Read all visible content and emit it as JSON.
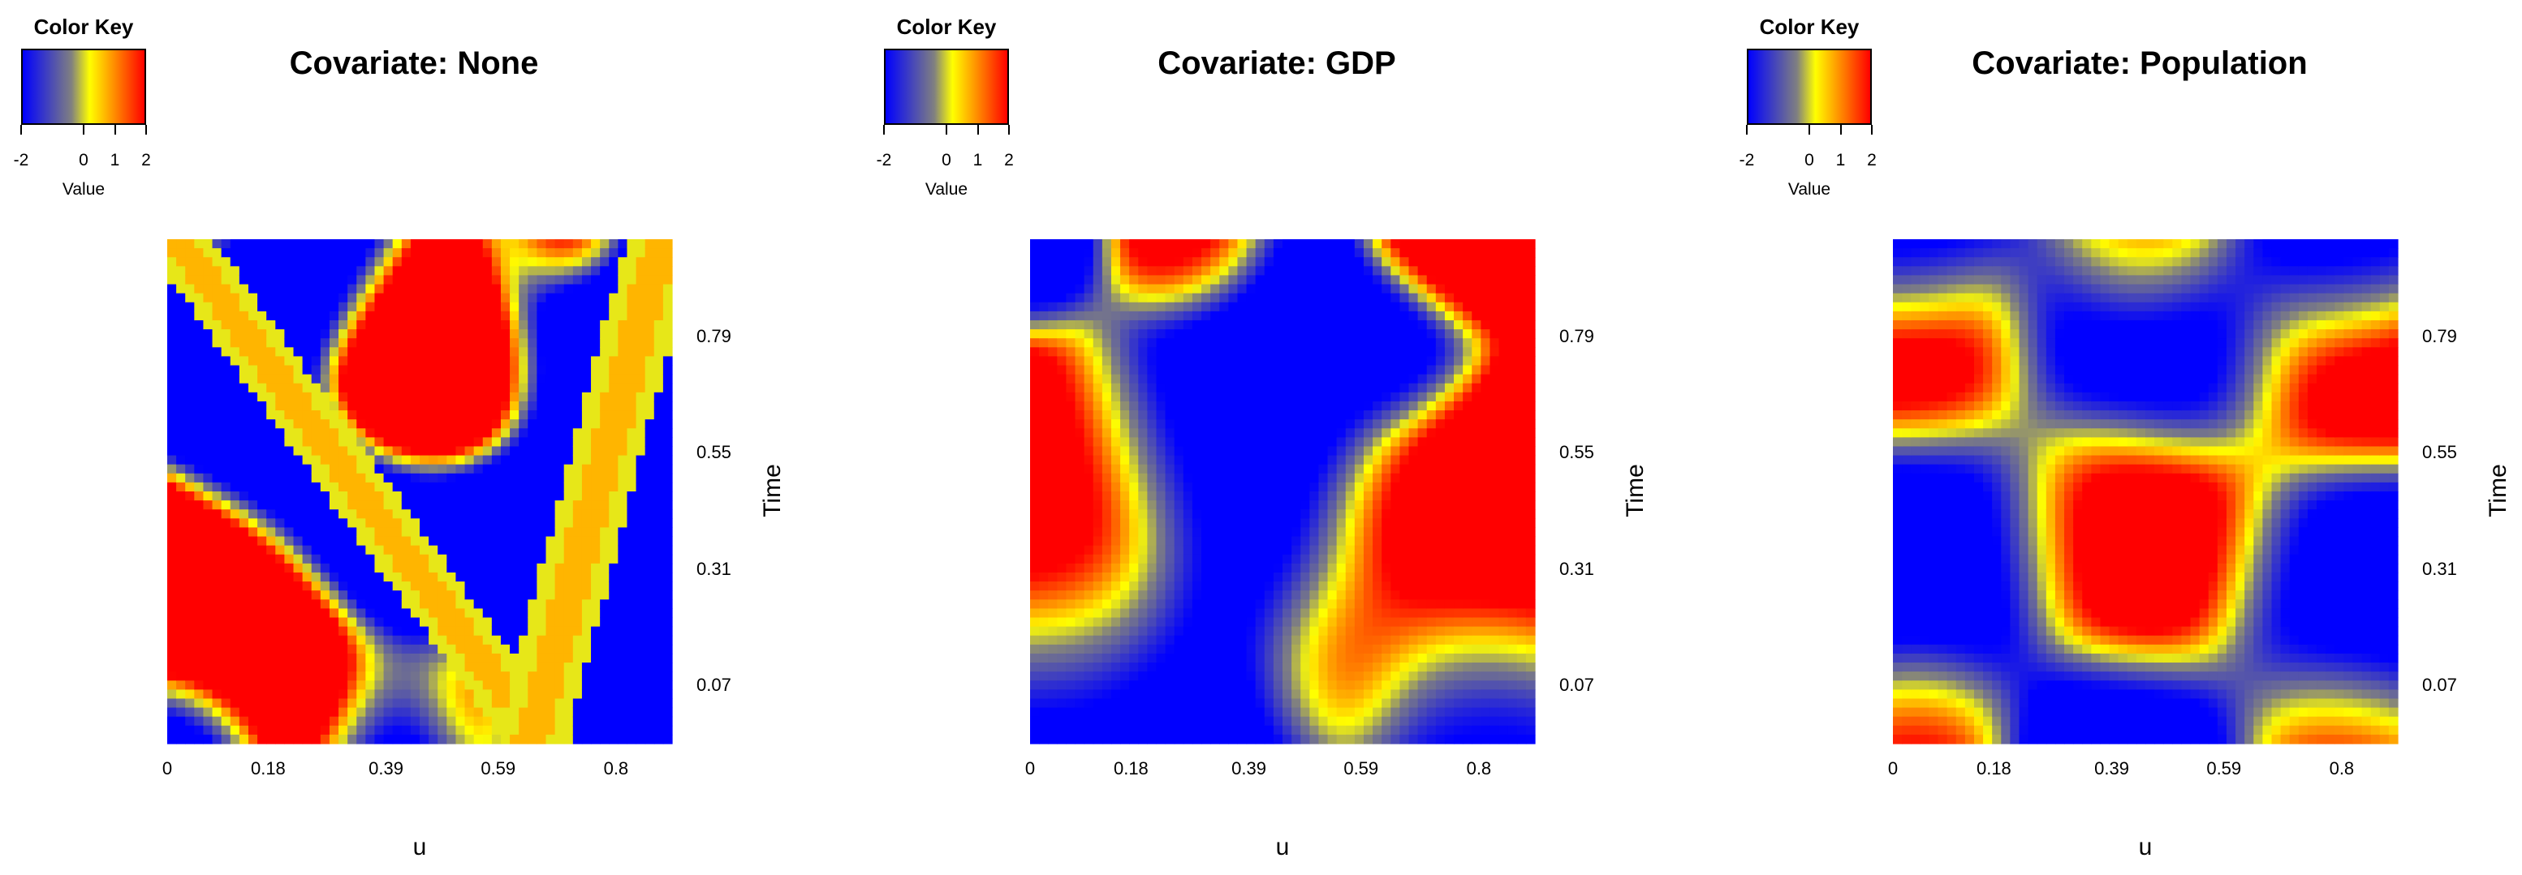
{
  "chart_data": [
    {
      "type": "heatmap",
      "title": "Covariate: None",
      "xlabel": "u",
      "ylabel": "Time",
      "x_ticks": [
        "0",
        "0.18",
        "0.39",
        "0.59",
        "0.8"
      ],
      "y_ticks": [
        "0.79",
        "0.55",
        "0.31",
        "0.07"
      ],
      "xlim": [
        0,
        0.9
      ],
      "ylim": [
        -0.05,
        0.99
      ],
      "color_key": {
        "title": "Color Key",
        "label": "Value",
        "ticks": [
          "-2",
          "0",
          "1",
          "2"
        ],
        "range": [
          -2,
          2
        ],
        "colors": [
          "#0000ff",
          "#808080",
          "#ffff00",
          "#ff0000"
        ]
      },
      "pattern": "sharp",
      "blobs": [
        [
          0.45,
          0.05,
          -2,
          0.12
        ],
        [
          0.0,
          0.88,
          -2,
          0.12
        ],
        [
          0.15,
          0.88,
          -2,
          0.12
        ],
        [
          0.3,
          0.92,
          -2,
          0.12
        ],
        [
          0.2,
          0.55,
          -2,
          0.12
        ],
        [
          0.35,
          0.42,
          -2,
          0.12
        ],
        [
          0.5,
          0.38,
          -2,
          0.12
        ],
        [
          0.65,
          0.38,
          -2,
          0.12
        ],
        [
          0.82,
          0.88,
          -2,
          0.12
        ],
        [
          0.82,
          0.7,
          -2,
          0.12
        ],
        [
          0.82,
          0.45,
          -2,
          0.12
        ],
        [
          0.82,
          0.25,
          -2,
          0.12
        ],
        [
          0.82,
          0.08,
          -2,
          0.12
        ],
        [
          0.05,
          0.05,
          -2,
          0.1
        ],
        [
          0.08,
          0.98,
          2,
          0.07
        ],
        [
          0.8,
          0.98,
          2,
          0.07
        ],
        [
          0.45,
          0.82,
          2,
          0.12
        ],
        [
          0.62,
          0.76,
          2,
          0.12
        ],
        [
          0.5,
          0.66,
          2,
          0.12
        ],
        [
          0.05,
          0.35,
          2,
          0.12
        ],
        [
          0.1,
          0.18,
          2,
          0.12
        ],
        [
          0.3,
          0.12,
          2,
          0.12
        ],
        [
          0.62,
          0.12,
          2,
          0.12
        ],
        [
          0.18,
          0.3,
          2,
          0.12
        ]
      ],
      "lines": [
        [
          0.74,
          0.02,
          0.07
        ],
        [
          0.72,
          0.98,
          0.07
        ]
      ]
    },
    {
      "type": "heatmap",
      "title": "Covariate: GDP",
      "xlabel": "u",
      "ylabel": "Time",
      "x_ticks": [
        "0",
        "0.18",
        "0.39",
        "0.59",
        "0.8"
      ],
      "y_ticks": [
        "0.79",
        "0.55",
        "0.31",
        "0.07"
      ],
      "xlim": [
        0,
        0.9
      ],
      "ylim": [
        -0.05,
        0.99
      ],
      "color_key": {
        "title": "Color Key",
        "label": "Value",
        "ticks": [
          "-2",
          "0",
          "1",
          "2"
        ],
        "range": [
          -2,
          2
        ],
        "colors": [
          "#0000ff",
          "#808080",
          "#ffff00",
          "#ff0000"
        ]
      },
      "pattern": "smooth",
      "blobs": [
        [
          0.45,
          0.3,
          -2,
          0.15
        ],
        [
          0.38,
          0.6,
          -2,
          0.15
        ],
        [
          0.45,
          0.72,
          -2,
          0.15
        ],
        [
          0.3,
          0.08,
          -2,
          0.15
        ],
        [
          0.05,
          0.08,
          -2,
          0.15
        ],
        [
          0.85,
          0.1,
          -2,
          0.12
        ],
        [
          0.7,
          0.78,
          -2,
          0.08
        ],
        [
          0.0,
          0.98,
          -2,
          0.08
        ],
        [
          0.05,
          0.55,
          2,
          0.15
        ],
        [
          0.08,
          0.3,
          2,
          0.15
        ],
        [
          0.85,
          0.45,
          2,
          0.15
        ],
        [
          0.82,
          0.3,
          2,
          0.15
        ],
        [
          0.6,
          0.18,
          2,
          0.1
        ],
        [
          0.85,
          0.98,
          2,
          0.08
        ],
        [
          0.3,
          0.98,
          2,
          0.08
        ]
      ],
      "lines": []
    },
    {
      "type": "heatmap",
      "title": "Covariate: Population",
      "xlabel": "u",
      "ylabel": "Time",
      "x_ticks": [
        "0",
        "0.18",
        "0.39",
        "0.59",
        "0.8"
      ],
      "y_ticks": [
        "0.79",
        "0.55",
        "0.31",
        "0.07"
      ],
      "xlim": [
        0,
        0.9
      ],
      "ylim": [
        -0.05,
        0.99
      ],
      "color_key": {
        "title": "Color Key",
        "label": "Value",
        "ticks": [
          "-2",
          "0",
          "1",
          "2"
        ],
        "range": [
          -2,
          2
        ],
        "colors": [
          "#0000ff",
          "#808080",
          "#ffff00",
          "#ff0000"
        ]
      },
      "pattern": "smooth",
      "blobs": [
        [
          0.05,
          0.25,
          -2,
          0.14
        ],
        [
          0.12,
          0.4,
          -2,
          0.14
        ],
        [
          0.45,
          0.82,
          -2,
          0.14
        ],
        [
          0.6,
          0.78,
          -2,
          0.12
        ],
        [
          0.85,
          0.95,
          -2,
          0.1
        ],
        [
          0.05,
          0.98,
          -2,
          0.1
        ],
        [
          0.85,
          0.35,
          -2,
          0.12
        ],
        [
          0.85,
          0.18,
          -2,
          0.12
        ],
        [
          0.4,
          0.02,
          -2,
          0.1
        ],
        [
          0.55,
          0.02,
          -2,
          0.1
        ],
        [
          0.08,
          0.78,
          2,
          0.12
        ],
        [
          0.45,
          0.42,
          2,
          0.14
        ],
        [
          0.55,
          0.35,
          2,
          0.14
        ],
        [
          0.85,
          0.75,
          2,
          0.12
        ],
        [
          0.5,
          0.98,
          2,
          0.1
        ],
        [
          0.05,
          0.05,
          2,
          0.1
        ],
        [
          0.85,
          0.03,
          2,
          0.1
        ]
      ],
      "lines": []
    }
  ]
}
